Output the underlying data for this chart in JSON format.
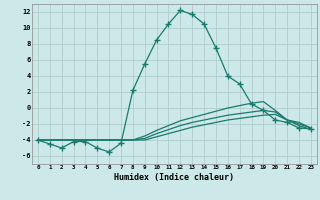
{
  "xlabel": "Humidex (Indice chaleur)",
  "x": [
    0,
    1,
    2,
    3,
    4,
    5,
    6,
    7,
    8,
    9,
    10,
    11,
    12,
    13,
    14,
    15,
    16,
    17,
    18,
    19,
    20,
    21,
    22,
    23
  ],
  "line1": [
    -4.0,
    -4.5,
    -5.0,
    -4.2,
    -4.2,
    -5.0,
    -5.5,
    -4.4,
    2.2,
    5.5,
    8.5,
    10.5,
    12.2,
    11.7,
    10.5,
    7.5,
    4.0,
    3.0,
    0.5,
    -0.3,
    -1.5,
    -1.8,
    -2.5,
    -2.6
  ],
  "line2": [
    -4.0,
    -4.0,
    -4.0,
    -4.0,
    -4.0,
    -4.0,
    -4.0,
    -4.0,
    -4.0,
    -3.5,
    -2.8,
    -2.2,
    -1.6,
    -1.2,
    -0.8,
    -0.4,
    0.0,
    0.3,
    0.6,
    0.8,
    -0.3,
    -1.5,
    -1.8,
    -2.5
  ],
  "line3": [
    -4.0,
    -4.0,
    -4.0,
    -4.0,
    -4.0,
    -4.0,
    -4.0,
    -4.0,
    -4.0,
    -3.8,
    -3.2,
    -2.7,
    -2.2,
    -1.8,
    -1.5,
    -1.2,
    -0.9,
    -0.7,
    -0.5,
    -0.3,
    -0.5,
    -1.5,
    -2.0,
    -2.5
  ],
  "line4": [
    -4.0,
    -4.0,
    -4.0,
    -4.0,
    -4.0,
    -4.0,
    -4.0,
    -4.0,
    -4.0,
    -4.0,
    -3.6,
    -3.2,
    -2.8,
    -2.4,
    -2.1,
    -1.8,
    -1.5,
    -1.3,
    -1.1,
    -0.9,
    -0.8,
    -1.5,
    -2.2,
    -2.7
  ],
  "line_color": "#1a7a6e",
  "bg_color": "#cce8e8",
  "grid_color": "#b0cccc",
  "ylim": [
    -7,
    13
  ],
  "xlim": [
    -0.5,
    23.5
  ],
  "yticks": [
    -6,
    -4,
    -2,
    0,
    2,
    4,
    6,
    8,
    10,
    12
  ],
  "xticks": [
    0,
    1,
    2,
    3,
    4,
    5,
    6,
    7,
    8,
    9,
    10,
    11,
    12,
    13,
    14,
    15,
    16,
    17,
    18,
    19,
    20,
    21,
    22,
    23
  ]
}
